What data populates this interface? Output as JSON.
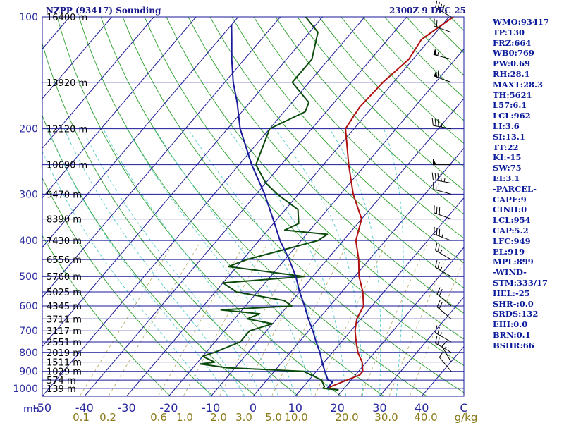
{
  "header": {
    "title": "NZPP (93417) Sounding",
    "time": "2300Z  9 DEC 25"
  },
  "indices": [
    "WMO:93417",
    "TP:130",
    "FRZ:664",
    "WB0:769",
    "PW:0.69",
    "RH:28.1",
    "MAXT:28.3",
    "TH:5621",
    "L57:6.1",
    "LCL:962",
    "LI:3.6",
    "SI:13.1",
    "TT:22",
    "KI:-15",
    "SW:75",
    "EI:3.1",
    "-PARCEL-",
    "CAPE:9",
    "CINH:0",
    "LCL:954",
    "CAP:5.2",
    "LFC:949",
    "EL:919",
    "MPL:899",
    "-WIND-",
    "STM:333/17",
    "HEL:-25",
    "SHR-:0.0",
    "SRDS:132",
    "EHI:0.0",
    "BRN:0.1",
    "BSHR:66"
  ],
  "chart_data": {
    "type": "line",
    "subtype": "skew-T log-P sounding",
    "pressure_ticks": [
      {
        "p": 100,
        "label": "100"
      },
      {
        "p": 200,
        "label": "200"
      },
      {
        "p": 300,
        "label": "300"
      },
      {
        "p": 400,
        "label": "400"
      },
      {
        "p": 500,
        "label": "500"
      },
      {
        "p": 600,
        "label": "600"
      },
      {
        "p": 700,
        "label": "700"
      },
      {
        "p": 800,
        "label": "800"
      },
      {
        "p": 900,
        "label": "900"
      },
      {
        "p": 1000,
        "label": "1000"
      }
    ],
    "pressure_unit_label": "mb",
    "temperature_ticks": [
      -50,
      -40,
      -30,
      -20,
      -10,
      0,
      10,
      20,
      30,
      40
    ],
    "temperature_range": [
      -50,
      50
    ],
    "pressure_range": [
      100,
      1050
    ],
    "height_levels": [
      {
        "p": 100,
        "label": "16400 m"
      },
      {
        "p": 150,
        "label": "13920 m"
      },
      {
        "p": 200,
        "label": "12120 m"
      },
      {
        "p": 250,
        "label": "10690 m"
      },
      {
        "p": 300,
        "label": "9470 m"
      },
      {
        "p": 350,
        "label": "8390 m"
      },
      {
        "p": 400,
        "label": "7430 m"
      },
      {
        "p": 450,
        "label": "6556 m"
      },
      {
        "p": 500,
        "label": "5760 m"
      },
      {
        "p": 550,
        "label": "5025 m"
      },
      {
        "p": 600,
        "label": "4345 m"
      },
      {
        "p": 650,
        "label": "3711 m"
      },
      {
        "p": 700,
        "label": "3117 m"
      },
      {
        "p": 750,
        "label": "2551 m"
      },
      {
        "p": 800,
        "label": "2019 m"
      },
      {
        "p": 850,
        "label": "1511 m"
      },
      {
        "p": 900,
        "label": "1029 m"
      },
      {
        "p": 950,
        "label": "574 m"
      },
      {
        "p": 1000,
        "label": "139 m"
      }
    ],
    "mixing_ratio_labels": [
      "0.1",
      "0.2",
      "0.6",
      "1.0",
      "2.0",
      "3.0",
      "5.0",
      "10.0",
      "20.0",
      "30.0",
      "40.0",
      "g/kg"
    ],
    "mixing_ratio_values": [
      0.1,
      0.2,
      0.6,
      1.0,
      2.0,
      3.0,
      5.0,
      10.0,
      20.0,
      30.0,
      40.0
    ],
    "series": [
      {
        "role": "temperature",
        "color": "#b01010",
        "points": [
          [
            1010,
            19
          ],
          [
            1000,
            16
          ],
          [
            990,
            16.5
          ],
          [
            950,
            19
          ],
          [
            920,
            21
          ],
          [
            900,
            21
          ],
          [
            850,
            19
          ],
          [
            800,
            16
          ],
          [
            750,
            13.5
          ],
          [
            700,
            11
          ],
          [
            650,
            9
          ],
          [
            600,
            8
          ],
          [
            550,
            5
          ],
          [
            500,
            1
          ],
          [
            450,
            -2.5
          ],
          [
            400,
            -7
          ],
          [
            350,
            -10
          ],
          [
            300,
            -17
          ],
          [
            250,
            -24
          ],
          [
            200,
            -32
          ],
          [
            175,
            -33
          ],
          [
            150,
            -32.5
          ],
          [
            130,
            -31
          ],
          [
            115,
            -32
          ],
          [
            100,
            -29
          ]
        ]
      },
      {
        "role": "dewpoint",
        "color": "#0a4a0a",
        "points": [
          [
            1010,
            19
          ],
          [
            1000,
            15
          ],
          [
            990,
            15
          ],
          [
            950,
            13
          ],
          [
            900,
            7
          ],
          [
            880,
            -12
          ],
          [
            860,
            -19
          ],
          [
            850,
            -16
          ],
          [
            820,
            -20
          ],
          [
            800,
            -18
          ],
          [
            750,
            -14
          ],
          [
            700,
            -14
          ],
          [
            670,
            -10
          ],
          [
            650,
            -17
          ],
          [
            630,
            -15
          ],
          [
            615,
            -25
          ],
          [
            600,
            -9
          ],
          [
            580,
            -12
          ],
          [
            550,
            -25
          ],
          [
            520,
            -30
          ],
          [
            500,
            -12
          ],
          [
            470,
            -32
          ],
          [
            450,
            -29
          ],
          [
            400,
            -16
          ],
          [
            385,
            -15
          ],
          [
            375,
            -26
          ],
          [
            360,
            -24
          ],
          [
            330,
            -27
          ],
          [
            300,
            -35
          ],
          [
            280,
            -40
          ],
          [
            250,
            -46
          ],
          [
            200,
            -50
          ],
          [
            180,
            -45
          ],
          [
            170,
            -46
          ],
          [
            150,
            -54
          ],
          [
            130,
            -54
          ],
          [
            110,
            -58
          ],
          [
            100,
            -64
          ]
        ]
      },
      {
        "role": "parcel",
        "color": "#1a1a9a",
        "points": [
          [
            1000,
            16
          ],
          [
            960,
            16
          ],
          [
            950,
            14.5
          ],
          [
            900,
            12
          ],
          [
            850,
            9.5
          ],
          [
            800,
            7
          ],
          [
            750,
            4
          ],
          [
            700,
            1
          ],
          [
            650,
            -2.5
          ],
          [
            600,
            -6
          ],
          [
            550,
            -10
          ],
          [
            500,
            -14
          ],
          [
            450,
            -19
          ],
          [
            400,
            -25
          ],
          [
            350,
            -31
          ],
          [
            300,
            -38
          ],
          [
            250,
            -47
          ],
          [
            200,
            -57
          ],
          [
            170,
            -63
          ],
          [
            150,
            -68
          ],
          [
            130,
            -73
          ],
          [
            115,
            -77
          ],
          [
            105,
            -80
          ]
        ]
      }
    ],
    "wind_barbs": [
      {
        "p": 100,
        "dir": 300,
        "spd": 45
      },
      {
        "p": 110,
        "dir": 290,
        "spd": 20
      },
      {
        "p": 130,
        "dir": 285,
        "spd": 55
      },
      {
        "p": 150,
        "dir": 290,
        "spd": 60
      },
      {
        "p": 200,
        "dir": 280,
        "spd": 35
      },
      {
        "p": 250,
        "dir": 270,
        "spd": 50
      },
      {
        "p": 280,
        "dir": 280,
        "spd": 45
      },
      {
        "p": 300,
        "dir": 285,
        "spd": 30
      },
      {
        "p": 350,
        "dir": 290,
        "spd": 30
      },
      {
        "p": 400,
        "dir": 290,
        "spd": 35
      },
      {
        "p": 450,
        "dir": 300,
        "spd": 25
      },
      {
        "p": 500,
        "dir": 300,
        "spd": 25
      },
      {
        "p": 600,
        "dir": 310,
        "spd": 20
      },
      {
        "p": 650,
        "dir": 310,
        "spd": 20
      },
      {
        "p": 750,
        "dir": 300,
        "spd": 25
      },
      {
        "p": 800,
        "dir": 300,
        "spd": 20
      },
      {
        "p": 850,
        "dir": 330,
        "spd": 15
      },
      {
        "p": 900,
        "dir": 320,
        "spd": 10
      }
    ]
  }
}
